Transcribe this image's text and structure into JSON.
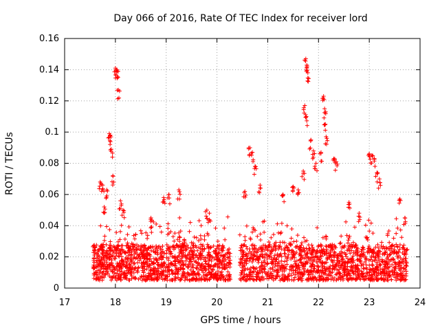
{
  "chart_data": {
    "type": "scatter",
    "title": "Day 066 of 2016, Rate Of TEC Index for receiver lord",
    "xlabel": "GPS time / hours",
    "ylabel": "ROTI / TECUs",
    "xlim": [
      17,
      24
    ],
    "ylim": [
      0,
      0.16
    ],
    "x_ticks": [
      "17",
      "18",
      "19",
      "20",
      "21",
      "22",
      "23",
      "24"
    ],
    "y_ticks": [
      "0",
      "0.02",
      "0.04",
      "0.06",
      "0.08",
      "0.1",
      "0.12",
      "0.14",
      "0.16"
    ],
    "grid": true,
    "marker": "+",
    "series_color": "#ff0000",
    "series": [
      {
        "name": "ROTI",
        "data_window": [
          17.55,
          23.75
        ],
        "gap": [
          20.27,
          20.45
        ],
        "baseline_range": [
          0.005,
          0.028
        ],
        "notable_points": [
          [
            17.7,
            0.068
          ],
          [
            17.75,
            0.066
          ],
          [
            17.78,
            0.052
          ],
          [
            17.83,
            0.063
          ],
          [
            17.88,
            0.099
          ],
          [
            17.9,
            0.098
          ],
          [
            17.92,
            0.089
          ],
          [
            17.95,
            0.072
          ],
          [
            18.0,
            0.141
          ],
          [
            18.02,
            0.14
          ],
          [
            18.04,
            0.139
          ],
          [
            18.06,
            0.127
          ],
          [
            18.1,
            0.056
          ],
          [
            18.15,
            0.05
          ],
          [
            18.7,
            0.045
          ],
          [
            18.95,
            0.058
          ],
          [
            19.05,
            0.06
          ],
          [
            19.25,
            0.063
          ],
          [
            19.8,
            0.05
          ],
          [
            19.85,
            0.048
          ],
          [
            20.55,
            0.062
          ],
          [
            20.65,
            0.09
          ],
          [
            20.7,
            0.087
          ],
          [
            20.75,
            0.078
          ],
          [
            20.85,
            0.066
          ],
          [
            21.3,
            0.06
          ],
          [
            21.5,
            0.065
          ],
          [
            21.6,
            0.063
          ],
          [
            21.7,
            0.075
          ],
          [
            21.75,
            0.147
          ],
          [
            21.77,
            0.143
          ],
          [
            21.79,
            0.138
          ],
          [
            21.73,
            0.117
          ],
          [
            21.76,
            0.11
          ],
          [
            21.85,
            0.095
          ],
          [
            21.9,
            0.088
          ],
          [
            21.95,
            0.08
          ],
          [
            22.05,
            0.087
          ],
          [
            22.1,
            0.123
          ],
          [
            22.12,
            0.115
          ],
          [
            22.13,
            0.105
          ],
          [
            22.15,
            0.097
          ],
          [
            22.3,
            0.083
          ],
          [
            22.35,
            0.081
          ],
          [
            22.6,
            0.055
          ],
          [
            22.8,
            0.048
          ],
          [
            23.0,
            0.086
          ],
          [
            23.05,
            0.085
          ],
          [
            23.1,
            0.083
          ],
          [
            23.15,
            0.074
          ],
          [
            23.2,
            0.07
          ],
          [
            23.6,
            0.057
          ],
          [
            23.7,
            0.045
          ]
        ]
      }
    ]
  }
}
